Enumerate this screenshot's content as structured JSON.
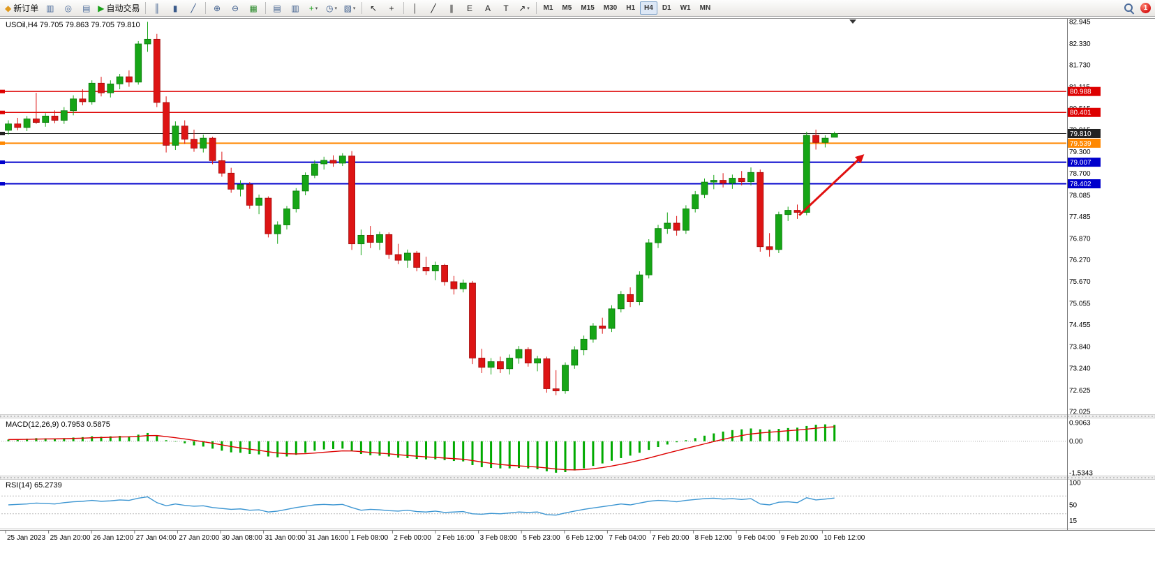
{
  "toolbar": {
    "groups": [
      {
        "items": [
          {
            "name": "new-order-button",
            "glyph": "◆",
            "color": "#e09a20",
            "label": "新订单"
          },
          {
            "name": "market-watch-icon",
            "glyph": "▥",
            "color": "#4a6a9a"
          },
          {
            "name": "navigator-icon",
            "glyph": "◎",
            "color": "#4a6a9a"
          },
          {
            "name": "terminal-icon",
            "glyph": "▤",
            "color": "#4a6a9a"
          },
          {
            "name": "autotrading-button",
            "glyph": "▶",
            "color": "#18a018",
            "label": "自动交易"
          }
        ]
      },
      {
        "items": [
          {
            "name": "bar-chart-icon",
            "glyph": "║",
            "color": "#3a5a8a"
          },
          {
            "name": "candlestick-chart-icon",
            "glyph": "▮",
            "color": "#3a5a8a"
          },
          {
            "name": "line-chart-icon",
            "glyph": "╱",
            "color": "#3a5a8a"
          }
        ]
      },
      {
        "items": [
          {
            "name": "zoom-in-icon",
            "glyph": "⊕",
            "color": "#3a5a8a"
          },
          {
            "name": "zoom-out-icon",
            "glyph": "⊖",
            "color": "#3a5a8a"
          },
          {
            "name": "tile-windows-icon",
            "glyph": "▦",
            "color": "#2a8a2a"
          }
        ]
      },
      {
        "items": [
          {
            "name": "arrange-charts-icon",
            "glyph": "▤",
            "color": "#3a5a8a"
          },
          {
            "name": "auto-scroll-icon",
            "glyph": "▥",
            "color": "#3a5a8a"
          },
          {
            "name": "add-indicator-icon",
            "glyph": "+",
            "color": "#18a018",
            "caret": true
          },
          {
            "name": "periods-icon",
            "glyph": "◷",
            "color": "#3a5a8a",
            "caret": true
          },
          {
            "name": "templates-icon",
            "glyph": "▧",
            "color": "#3a5a8a",
            "caret": true
          }
        ]
      },
      {
        "items": [
          {
            "name": "cursor-icon",
            "glyph": "↖",
            "color": "#222222"
          },
          {
            "name": "crosshair-icon",
            "glyph": "+",
            "color": "#222222"
          }
        ]
      },
      {
        "items": [
          {
            "name": "vertical-line-icon",
            "glyph": "│",
            "color": "#222222"
          },
          {
            "name": "trendline-icon",
            "glyph": "╱",
            "color": "#222222"
          },
          {
            "name": "channel-icon",
            "glyph": "∥",
            "color": "#222222"
          },
          {
            "name": "fibonacci-icon",
            "glyph": "E",
            "color": "#222222"
          },
          {
            "name": "text-icon",
            "glyph": "A",
            "color": "#222222"
          },
          {
            "name": "label-icon",
            "glyph": "T",
            "color": "#222222"
          },
          {
            "name": "arrow-tools-icon",
            "glyph": "↗",
            "color": "#222222",
            "caret": true
          }
        ]
      },
      {
        "items": "timeframes"
      }
    ],
    "timeframes": [
      "M1",
      "M5",
      "M15",
      "M30",
      "H1",
      "H4",
      "D1",
      "W1",
      "MN"
    ],
    "active_timeframe": "H4",
    "notification_count": "1"
  },
  "chart": {
    "symbol_label": "USOil,H4 79.705 79.863 79.705 79.810",
    "macd_label": "MACD(12,26,9) 0.7953 0.5875",
    "rsi_label": "RSI(14) 65.2739"
  },
  "chart_data": [
    {
      "type": "candlestick",
      "symbol": "USOil",
      "timeframe": "H4",
      "ohlc_current": [
        79.705,
        79.863,
        79.705,
        79.81
      ],
      "ylim": [
        72.025,
        82.945
      ],
      "bull_color": "#16a516",
      "bear_color": "#dd1414",
      "axis_ticks": [
        82.945,
        82.33,
        81.73,
        81.115,
        80.515,
        79.915,
        79.3,
        78.7,
        78.085,
        77.485,
        76.87,
        76.27,
        75.67,
        75.055,
        74.455,
        73.84,
        73.24,
        72.625,
        72.025
      ],
      "hlines": [
        {
          "price": 80.988,
          "label": "80.988",
          "color": "#dd0000",
          "width": 1.5
        },
        {
          "price": 80.401,
          "label": "80.401",
          "color": "#dd0000",
          "width": 1.5
        },
        {
          "price": 79.81,
          "label": "79.810",
          "color": "#222222",
          "width": 1
        },
        {
          "price": 79.539,
          "label": "79.539",
          "color": "#ff8800",
          "width": 2
        },
        {
          "price": 79.007,
          "label": "79.007",
          "color": "#0000cc",
          "width": 2
        },
        {
          "price": 78.402,
          "label": "78.402",
          "color": "#0000cc",
          "width": 2
        }
      ],
      "annotations": [
        {
          "type": "arrow",
          "from": [
            85.2,
            77.52
          ],
          "to": [
            92.0,
            79.18
          ],
          "color": "#e01010",
          "width": 3
        }
      ],
      "time_labels": [
        "25 Jan 2023",
        "25 Jan 20:00",
        "26 Jan 12:00",
        "27 Jan 04:00",
        "27 Jan 20:00",
        "30 Jan 08:00",
        "31 Jan 00:00",
        "31 Jan 16:00",
        "1 Feb 08:00",
        "2 Feb 00:00",
        "2 Feb 16:00",
        "3 Feb 08:00",
        "5 Feb 23:00",
        "6 Feb 12:00",
        "7 Feb 04:00",
        "7 Feb 20:00",
        "8 Feb 12:00",
        "9 Feb 04:00",
        "9 Feb 20:00",
        "10 Feb 12:00"
      ],
      "candles": [
        [
          79.9,
          80.18,
          79.78,
          80.08
        ],
        [
          80.08,
          80.25,
          79.9,
          79.98
        ],
        [
          79.98,
          80.3,
          79.88,
          80.22
        ],
        [
          80.22,
          80.95,
          80.08,
          80.12
        ],
        [
          80.12,
          80.38,
          80.0,
          80.3
        ],
        [
          80.3,
          80.46,
          80.1,
          80.18
        ],
        [
          80.18,
          80.55,
          80.08,
          80.45
        ],
        [
          80.45,
          80.88,
          80.32,
          80.78
        ],
        [
          80.78,
          81.05,
          80.6,
          80.7
        ],
        [
          80.7,
          81.3,
          80.62,
          81.22
        ],
        [
          81.22,
          81.4,
          80.85,
          80.95
        ],
        [
          80.95,
          81.3,
          80.82,
          81.2
        ],
        [
          81.2,
          81.48,
          81.05,
          81.4
        ],
        [
          81.4,
          81.58,
          81.12,
          81.25
        ],
        [
          81.25,
          82.4,
          81.18,
          82.32
        ],
        [
          82.32,
          82.94,
          82.1,
          82.45
        ],
        [
          82.45,
          82.6,
          80.55,
          80.68
        ],
        [
          80.68,
          80.85,
          79.28,
          79.48
        ],
        [
          79.48,
          80.15,
          79.35,
          80.02
        ],
        [
          80.02,
          80.18,
          79.52,
          79.65
        ],
        [
          79.65,
          79.92,
          79.3,
          79.4
        ],
        [
          79.4,
          79.78,
          79.28,
          79.68
        ],
        [
          79.68,
          79.72,
          78.95,
          79.05
        ],
        [
          79.05,
          79.3,
          78.6,
          78.7
        ],
        [
          78.7,
          78.85,
          78.15,
          78.25
        ],
        [
          78.25,
          78.5,
          78.05,
          78.38
        ],
        [
          78.38,
          78.45,
          77.7,
          77.8
        ],
        [
          77.8,
          78.1,
          77.55,
          78.0
        ],
        [
          78.0,
          78.05,
          76.9,
          77.0
        ],
        [
          77.0,
          77.35,
          76.72,
          77.25
        ],
        [
          77.25,
          77.78,
          77.12,
          77.7
        ],
        [
          77.7,
          78.28,
          77.6,
          78.2
        ],
        [
          78.2,
          78.72,
          78.08,
          78.64
        ],
        [
          78.64,
          79.06,
          78.56,
          78.96
        ],
        [
          78.96,
          79.16,
          78.8,
          79.06
        ],
        [
          79.06,
          79.2,
          78.88,
          78.98
        ],
        [
          78.98,
          79.26,
          78.9,
          79.18
        ],
        [
          79.18,
          79.32,
          76.55,
          76.72
        ],
        [
          76.72,
          77.12,
          76.4,
          76.96
        ],
        [
          76.96,
          77.22,
          76.6,
          76.76
        ],
        [
          76.76,
          77.06,
          76.55,
          76.98
        ],
        [
          76.98,
          77.04,
          76.3,
          76.42
        ],
        [
          76.42,
          76.72,
          76.15,
          76.26
        ],
        [
          76.26,
          76.56,
          76.05,
          76.46
        ],
        [
          76.46,
          76.52,
          75.95,
          76.06
        ],
        [
          76.06,
          76.36,
          75.85,
          75.96
        ],
        [
          75.96,
          76.22,
          75.7,
          76.12
        ],
        [
          76.12,
          76.16,
          75.55,
          75.66
        ],
        [
          75.66,
          75.82,
          75.3,
          75.46
        ],
        [
          75.46,
          75.72,
          75.36,
          75.62
        ],
        [
          75.62,
          75.68,
          73.35,
          73.52
        ],
        [
          73.52,
          73.78,
          73.1,
          73.26
        ],
        [
          73.26,
          73.52,
          73.06,
          73.42
        ],
        [
          73.42,
          73.56,
          73.1,
          73.22
        ],
        [
          73.22,
          73.62,
          73.06,
          73.52
        ],
        [
          73.52,
          73.86,
          73.36,
          73.76
        ],
        [
          73.76,
          73.82,
          73.28,
          73.38
        ],
        [
          73.38,
          73.58,
          73.15,
          73.5
        ],
        [
          73.5,
          73.56,
          72.55,
          72.66
        ],
        [
          72.66,
          73.18,
          72.48,
          72.6
        ],
        [
          72.6,
          73.4,
          72.52,
          73.32
        ],
        [
          73.32,
          73.85,
          73.22,
          73.75
        ],
        [
          73.75,
          74.15,
          73.6,
          74.05
        ],
        [
          74.05,
          74.5,
          73.95,
          74.42
        ],
        [
          74.42,
          74.65,
          74.2,
          74.35
        ],
        [
          74.35,
          75.0,
          74.25,
          74.9
        ],
        [
          74.9,
          75.4,
          74.8,
          75.3
        ],
        [
          75.3,
          75.5,
          74.95,
          75.1
        ],
        [
          75.1,
          75.95,
          75.0,
          75.85
        ],
        [
          75.85,
          76.85,
          75.75,
          76.75
        ],
        [
          76.75,
          77.25,
          76.6,
          77.15
        ],
        [
          77.15,
          77.6,
          77.0,
          77.3
        ],
        [
          77.3,
          77.5,
          76.95,
          77.1
        ],
        [
          77.1,
          77.8,
          77.0,
          77.7
        ],
        [
          77.7,
          78.2,
          77.6,
          78.1
        ],
        [
          78.1,
          78.55,
          78.0,
          78.45
        ],
        [
          78.45,
          78.65,
          78.25,
          78.5
        ],
        [
          78.5,
          78.7,
          78.3,
          78.42
        ],
        [
          78.42,
          78.66,
          78.26,
          78.56
        ],
        [
          78.56,
          78.76,
          78.36,
          78.46
        ],
        [
          78.46,
          78.86,
          78.36,
          78.72
        ],
        [
          78.72,
          78.8,
          76.5,
          76.64
        ],
        [
          76.64,
          77.02,
          76.36,
          76.56
        ],
        [
          76.56,
          77.62,
          76.46,
          77.54
        ],
        [
          77.54,
          77.76,
          77.36,
          77.66
        ],
        [
          77.66,
          77.82,
          77.42,
          77.6
        ],
        [
          77.6,
          79.86,
          77.52,
          79.76
        ],
        [
          79.76,
          79.92,
          79.36,
          79.56
        ],
        [
          79.56,
          79.76,
          79.42,
          79.68
        ],
        [
          79.705,
          79.863,
          79.705,
          79.81
        ]
      ]
    },
    {
      "type": "bar",
      "name": "MACD",
      "params": "(12,26,9)",
      "current_values": "0.7953 0.5875",
      "ylim": [
        -1.5343,
        0.9063
      ],
      "bar_color": "#00aa00",
      "signal_color": "#dd0000",
      "axis_ticks": [
        {
          "v": 0.9063,
          "label": "0.9063"
        },
        {
          "v": 0,
          "label": "0.00"
        },
        {
          "v": -1.5343,
          "label": "-1.5343"
        }
      ],
      "values": [
        0.08,
        0.1,
        0.12,
        0.15,
        0.14,
        0.12,
        0.15,
        0.18,
        0.2,
        0.24,
        0.22,
        0.24,
        0.26,
        0.24,
        0.32,
        0.4,
        0.28,
        0.05,
        -0.02,
        -0.1,
        -0.2,
        -0.26,
        -0.36,
        -0.46,
        -0.54,
        -0.56,
        -0.62,
        -0.64,
        -0.74,
        -0.78,
        -0.74,
        -0.66,
        -0.56,
        -0.46,
        -0.4,
        -0.38,
        -0.36,
        -0.48,
        -0.62,
        -0.68,
        -0.7,
        -0.74,
        -0.8,
        -0.82,
        -0.86,
        -0.88,
        -0.88,
        -0.92,
        -0.96,
        -0.98,
        -1.16,
        -1.26,
        -1.3,
        -1.32,
        -1.32,
        -1.3,
        -1.32,
        -1.36,
        -1.46,
        -1.53,
        -1.5,
        -1.42,
        -1.32,
        -1.2,
        -1.08,
        -0.95,
        -0.82,
        -0.7,
        -0.56,
        -0.42,
        -0.28,
        -0.16,
        -0.05,
        0.05,
        0.15,
        0.27,
        0.38,
        0.47,
        0.54,
        0.58,
        0.62,
        0.58,
        0.56,
        0.6,
        0.64,
        0.66,
        0.74,
        0.8,
        0.82,
        0.795
      ]
    },
    {
      "type": "line",
      "name": "RSI",
      "params": "(14)",
      "current_values": "65.2739",
      "ylim": [
        0,
        100
      ],
      "levels": [
        70,
        30
      ],
      "line_color": "#3d96d2",
      "axis_ticks": [
        {
          "v": 100,
          "label": "100"
        },
        {
          "v": 50,
          "label": "50"
        },
        {
          "v": 15,
          "label": "15"
        }
      ],
      "values": [
        50,
        51,
        52,
        54,
        53,
        52,
        55,
        57,
        58,
        60,
        58,
        59,
        61,
        60,
        65,
        68,
        55,
        48,
        52,
        49,
        47,
        48,
        44,
        42,
        40,
        41,
        38,
        39,
        34,
        36,
        40,
        44,
        47,
        50,
        51,
        50,
        51,
        44,
        38,
        40,
        39,
        37,
        36,
        38,
        35,
        34,
        36,
        33,
        34,
        35,
        30,
        29,
        31,
        30,
        32,
        34,
        33,
        34,
        28,
        27,
        32,
        36,
        40,
        43,
        46,
        49,
        52,
        50,
        54,
        58,
        60,
        59,
        57,
        60,
        62,
        64,
        65,
        63,
        64,
        62,
        64,
        52,
        50,
        56,
        57,
        55,
        66,
        61,
        63,
        65.27
      ]
    }
  ]
}
